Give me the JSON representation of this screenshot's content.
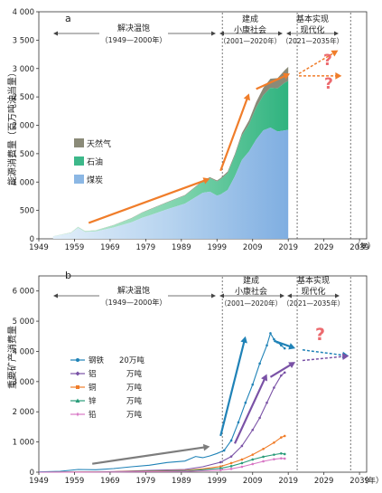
{
  "colors": {
    "gas": "#8a8a78",
    "oil": "#3db88a",
    "coal": "#8bb7e4",
    "orange": "#f07d2a",
    "question": "#ec6a6e",
    "steel": "#1f82b7",
    "aluminum": "#7a52a6",
    "copper": "#f07d2a",
    "zinc": "#2a9c7a",
    "lead": "#d877c5",
    "gray_arrow": "#7d7d7d"
  },
  "chart_data": [
    {
      "type": "area",
      "panel_label": "a",
      "ylabel": "能源消费量（百万吨油当量）",
      "xlabel": "（年）",
      "xlim": [
        1949,
        2041
      ],
      "ylim": [
        0,
        4000
      ],
      "xticks": [
        1949,
        1959,
        1969,
        1979,
        1989,
        1999,
        2009,
        2019,
        2029,
        2039
      ],
      "yticks": [
        0,
        500,
        1000,
        1500,
        2000,
        2500,
        3000,
        3500,
        4000
      ],
      "ytick_labels": [
        "0",
        "500",
        "1 000",
        "1 500",
        "2 000",
        "2 500",
        "3 000",
        "3 500",
        "4 000"
      ],
      "periods": [
        {
          "label": "解决温饱",
          "sub": "（1949—2000年）"
        },
        {
          "label": "建成",
          "label2": "小康社会",
          "sub": "（2001—2020年）"
        },
        {
          "label": "基本实现",
          "label2": "现代化",
          "sub": "（2021—2035年）"
        }
      ],
      "legend": [
        "天然气",
        "石油",
        "煤炭"
      ],
      "x": [
        1953,
        1958,
        1960,
        1962,
        1965,
        1970,
        1975,
        1978,
        1980,
        1985,
        1990,
        1995,
        1997,
        1999,
        2000,
        2002,
        2004,
        2006,
        2008,
        2010,
        2012,
        2014,
        2016,
        2018,
        2019
      ],
      "series": [
        {
          "name": "煤炭",
          "values": [
            40,
            100,
            190,
            120,
            130,
            200,
            290,
            370,
            410,
            520,
            620,
            810,
            830,
            760,
            780,
            860,
            1100,
            1390,
            1540,
            1750,
            1910,
            1960,
            1890,
            1910,
            1920
          ]
        },
        {
          "name": "石油",
          "values": [
            5,
            10,
            20,
            15,
            20,
            40,
            70,
            90,
            100,
            120,
            140,
            200,
            240,
            250,
            270,
            300,
            360,
            430,
            480,
            560,
            620,
            700,
            760,
            840,
            860
          ]
        },
        {
          "name": "天然气",
          "values": [
            0,
            1,
            2,
            2,
            2,
            4,
            6,
            7,
            8,
            8,
            10,
            14,
            16,
            18,
            20,
            25,
            32,
            45,
            70,
            100,
            130,
            160,
            180,
            220,
            250
          ]
        }
      ],
      "question_marks": [
        "?",
        "?"
      ]
    },
    {
      "type": "line",
      "panel_label": "b",
      "ylabel": "重要矿产消费量",
      "xlabel": "（年）",
      "xlim": [
        1949,
        2041
      ],
      "ylim": [
        0,
        6500
      ],
      "xticks": [
        1949,
        1959,
        1969,
        1979,
        1989,
        1999,
        2009,
        2019,
        2029,
        2039
      ],
      "yticks": [
        0,
        1000,
        2000,
        3000,
        4000,
        5000,
        6000
      ],
      "ytick_labels": [
        "0",
        "1 000",
        "2 000",
        "3 000",
        "4 000",
        "5 000",
        "6 000"
      ],
      "periods": [
        {
          "label": "解决温饱",
          "sub": "（1949—2000年）"
        },
        {
          "label": "建成",
          "label2": "小康社会",
          "sub": "（2001—2020年）"
        },
        {
          "label": "基本实现",
          "label2": "现代化",
          "sub": "（2021—2035年）"
        }
      ],
      "legend": [
        {
          "name": "钢铁",
          "unit": "20万吨"
        },
        {
          "name": "铝",
          "unit": "万吨"
        },
        {
          "name": "铜",
          "unit": "万吨"
        },
        {
          "name": "锌",
          "unit": "万吨"
        },
        {
          "name": "铅",
          "unit": "万吨"
        }
      ],
      "series": [
        {
          "name": "钢铁",
          "x": [
            1949,
            1955,
            1960,
            1965,
            1970,
            1975,
            1980,
            1985,
            1990,
            1993,
            1995,
            1997,
            1999,
            2001,
            2003,
            2005,
            2007,
            2009,
            2011,
            2013,
            2014,
            2015,
            2016,
            2017,
            2018
          ],
          "values": [
            10,
            30,
            90,
            80,
            120,
            180,
            230,
            320,
            370,
            520,
            480,
            540,
            620,
            720,
            1050,
            1650,
            2300,
            2900,
            3600,
            4200,
            4600,
            4400,
            4300,
            4200,
            4100
          ]
        },
        {
          "name": "铝",
          "x": [
            1949,
            1960,
            1970,
            1980,
            1990,
            1995,
            2000,
            2003,
            2006,
            2009,
            2011,
            2013,
            2015,
            2017,
            2018
          ],
          "values": [
            0,
            5,
            20,
            60,
            90,
            180,
            330,
            520,
            870,
            1400,
            1800,
            2300,
            2800,
            3200,
            3300
          ]
        },
        {
          "name": "铜",
          "x": [
            1949,
            1960,
            1970,
            1980,
            1990,
            1995,
            2000,
            2003,
            2006,
            2009,
            2012,
            2015,
            2017,
            2018
          ],
          "values": [
            0,
            5,
            15,
            35,
            60,
            110,
            190,
            300,
            420,
            580,
            770,
            980,
            1150,
            1200
          ]
        },
        {
          "name": "锌",
          "x": [
            1949,
            1960,
            1970,
            1980,
            1990,
            1995,
            2000,
            2003,
            2006,
            2009,
            2012,
            2015,
            2017,
            2018
          ],
          "values": [
            0,
            4,
            10,
            25,
            45,
            80,
            130,
            200,
            300,
            420,
            510,
            580,
            620,
            600
          ]
        },
        {
          "name": "铅",
          "x": [
            1949,
            1960,
            1970,
            1980,
            1990,
            1995,
            2000,
            2003,
            2006,
            2009,
            2012,
            2015,
            2017,
            2018
          ],
          "values": [
            0,
            2,
            6,
            15,
            25,
            45,
            70,
            110,
            180,
            270,
            360,
            430,
            460,
            450
          ]
        }
      ],
      "question_marks": [
        "?"
      ]
    }
  ]
}
